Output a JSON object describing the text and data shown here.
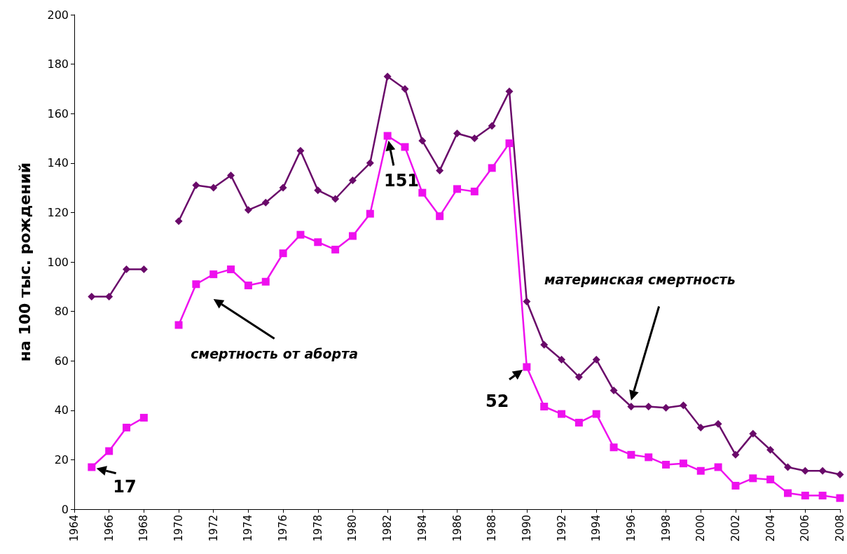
{
  "chart_data": {
    "type": "line",
    "ylabel": "на 100 тыс. рождений",
    "x": [
      1965,
      1966,
      1967,
      1968,
      1969,
      1970,
      1971,
      1972,
      1973,
      1974,
      1975,
      1976,
      1977,
      1978,
      1979,
      1980,
      1981,
      1982,
      1983,
      1984,
      1985,
      1986,
      1987,
      1988,
      1989,
      1990,
      1991,
      1992,
      1993,
      1994,
      1995,
      1996,
      1997,
      1998,
      1999,
      2000,
      2001,
      2002,
      2003,
      2004,
      2005,
      2006,
      2007,
      2008
    ],
    "series": [
      {
        "name": "материнская смертность",
        "color": "#6a0a6a",
        "marker": "diamond",
        "values": [
          86,
          86,
          97,
          97,
          null,
          116.5,
          131,
          130,
          135,
          121,
          124,
          130,
          145,
          129,
          125.5,
          133,
          140,
          175,
          170,
          149,
          137,
          152,
          150,
          155,
          169,
          84,
          66.5,
          60.5,
          53.5,
          60.5,
          48,
          41.5,
          41.5,
          41,
          42,
          33,
          34.5,
          22,
          30.5,
          24,
          17,
          15.5,
          15.5,
          14
        ]
      },
      {
        "name": "смертность от аборта",
        "color": "#ee10ee",
        "marker": "square",
        "values": [
          17,
          23.5,
          33,
          37,
          null,
          74.5,
          91,
          95,
          97,
          90.5,
          92,
          103.5,
          111,
          108,
          105,
          110.5,
          119.5,
          151,
          146.5,
          128,
          118.5,
          129.5,
          128.5,
          138,
          148,
          57.5,
          41.5,
          38.5,
          35,
          38.5,
          25,
          22,
          21,
          18,
          18.5,
          15.5,
          17,
          9.5,
          12.5,
          12,
          6.5,
          5.5,
          5.5,
          4.5
        ]
      }
    ],
    "annotations": [
      {
        "text": "17",
        "x": 1965,
        "y": 17
      },
      {
        "text": "151",
        "x": 1982,
        "y": 151
      },
      {
        "text": "52",
        "x": 1990,
        "y": 57.5
      }
    ],
    "xlim": [
      1964,
      2008
    ],
    "xticks": [
      1964,
      1966,
      1968,
      1970,
      1972,
      1974,
      1976,
      1978,
      1980,
      1982,
      1984,
      1986,
      1988,
      1990,
      1992,
      1994,
      1996,
      1998,
      2000,
      2002,
      2004,
      2006,
      2008
    ],
    "ylim": [
      0,
      200
    ],
    "yticks": [
      0,
      20,
      40,
      60,
      80,
      100,
      120,
      140,
      160,
      180,
      200
    ],
    "grid": false,
    "legend": false,
    "line_style": "solid"
  }
}
